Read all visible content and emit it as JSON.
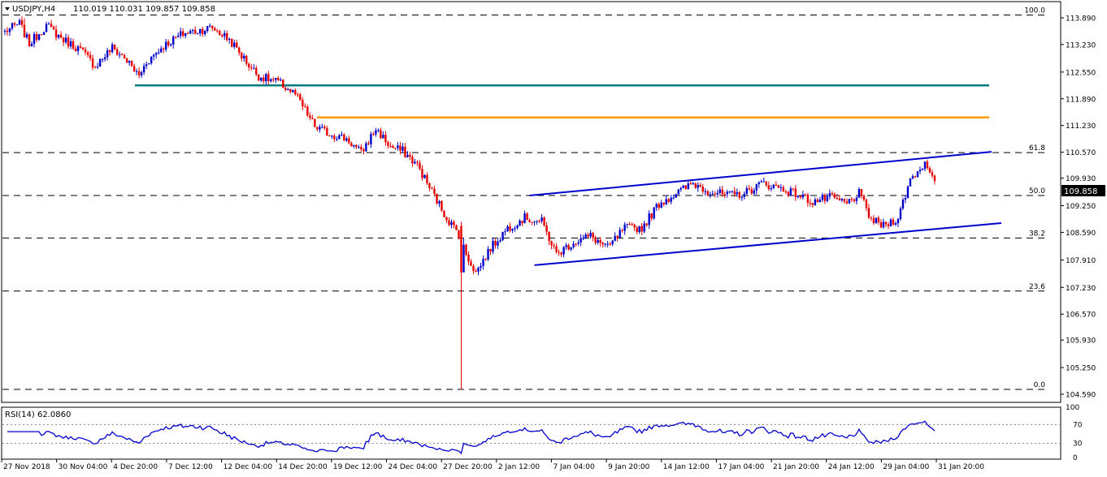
{
  "chart_data": [
    {
      "type": "candlestick",
      "header": {
        "symbol_timeframe": "USDJPY,H4",
        "ohlc": "110.019 110.031 109.857 109.858"
      },
      "price_axis": {
        "ylim": [
          104.43,
          114.23
        ],
        "ticks": [
          "113.890",
          "113.230",
          "112.550",
          "111.890",
          "111.230",
          "110.570",
          "109.930",
          "109.250",
          "108.590",
          "107.910",
          "107.230",
          "106.570",
          "105.930",
          "105.250",
          "104.590"
        ],
        "current_price_label": "109.858"
      },
      "time_axis_labels": [
        "27 Nov 2018",
        "30 Nov 04:00",
        "4 Dec 20:00",
        "7 Dec 12:00",
        "12 Dec 04:00",
        "14 Dec 20:00",
        "19 Dec 12:00",
        "24 Dec 04:00",
        "27 Dec 20:00",
        "2 Jan 12:00",
        "7 Jan 04:00",
        "9 Jan 20:00",
        "14 Jan 12:00",
        "17 Jan 04:00",
        "21 Jan 20:00",
        "24 Jan 12:00",
        "29 Jan 04:00",
        "31 Jan 20:00"
      ],
      "fibonacci_levels": [
        {
          "label": "100.0",
          "price": 113.96
        },
        {
          "label": "61.8",
          "price": 110.56
        },
        {
          "label": "50.0",
          "price": 109.5
        },
        {
          "label": "38.2",
          "price": 108.45
        },
        {
          "label": "23.6",
          "price": 107.14
        },
        {
          "label": "0.0",
          "price": 104.71
        }
      ],
      "horizontal_lines": [
        {
          "name": "support-resistance-teal",
          "price": 112.22,
          "color": "#007a7a"
        },
        {
          "name": "resistance-orange",
          "price": 111.43,
          "color": "#ff9900"
        }
      ],
      "channel_lines": {
        "color": "#0000cc"
      },
      "colors": {
        "bull": "#0000cc",
        "bear": "#e60000"
      },
      "key_prices": {
        "start": 113.55,
        "high": 113.88,
        "flash_crash_low": 104.71,
        "jan2_close": 107.6,
        "last": 109.858
      }
    },
    {
      "type": "line",
      "indicator": "RSI(14)",
      "label": "RSI(14) 62.0860",
      "ylim": [
        0,
        100
      ],
      "levels": [
        "70",
        "30",
        "0"
      ],
      "upper_label": "100",
      "color": "#0000cc"
    }
  ]
}
